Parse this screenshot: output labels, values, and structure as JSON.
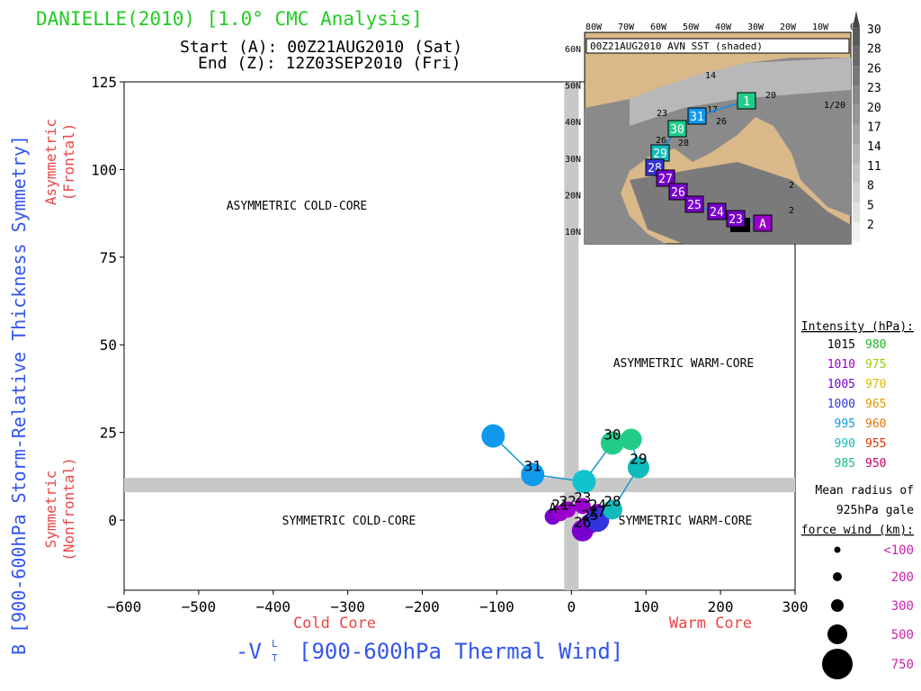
{
  "header": {
    "title": "DANIELLE(2010) [1.0° CMC Analysis]",
    "start": "Start (A): 00Z21AUG2010 (Sat)",
    "end": "End (Z): 12Z03SEP2010 (Fri)"
  },
  "axes": {
    "ylabel": "B [900-600hPa Storm-Relative Thickness Symmetry]",
    "xlabel_main": "-V",
    "xlabel_T": "T",
    "xlabel_L": "L",
    "xlabel_rest": "[900-600hPa Thermal Wind]",
    "y_top_annot": [
      "Asymmetric",
      "(Frontal)"
    ],
    "y_bottom_annot": [
      "Symmetric",
      "(Nonfrontal)"
    ],
    "x_left_annot": "Cold Core",
    "x_right_annot": "Warm Core"
  },
  "quadrants": {
    "asym_cold": "ASYMMETRIC COLD-CORE",
    "asym_warm": "ASYMMETRIC WARM-CORE",
    "sym_cold": "SYMMETRIC COLD-CORE",
    "sym_warm": "SYMMETRIC WARM-CORE"
  },
  "inset": {
    "title": "00Z21AUG2010 AVN SST (shaded)",
    "lon_labels": [
      "80W",
      "70W",
      "60W",
      "50W",
      "40W",
      "30W",
      "20W",
      "10W",
      "0"
    ],
    "lat_labels": [
      "60N",
      "50N",
      "40N",
      "30N",
      "20N",
      "10N"
    ],
    "colorbar": [
      "30",
      "28",
      "26",
      "23",
      "20",
      "17",
      "14",
      "11",
      "8",
      "5",
      "2"
    ],
    "track_labels": [
      "1",
      "31",
      "30",
      "29",
      "28",
      "27",
      "26",
      "25",
      "24",
      "23",
      "A"
    ],
    "sst_labels": [
      "14",
      "17",
      "20",
      "1/20",
      "23",
      "26",
      "26",
      "28",
      "2",
      "2"
    ]
  },
  "legend": {
    "intensity_title": "Intensity (hPa):",
    "intensity": [
      {
        "left": "1015",
        "left_color": "#000000",
        "right": "980",
        "right_color": "#22bb22"
      },
      {
        "left": "1010",
        "left_color": "#9900cc",
        "right": "975",
        "right_color": "#99cc00"
      },
      {
        "left": "1005",
        "left_color": "#7700cc",
        "right": "970",
        "right_color": "#ddbb00"
      },
      {
        "left": "1000",
        "left_color": "#3333dd",
        "right": "965",
        "right_color": "#dd9900"
      },
      {
        "left": "995",
        "left_color": "#1199dd",
        "right": "960",
        "right_color": "#dd7700"
      },
      {
        "left": "990",
        "left_color": "#11bbbb",
        "right": "955",
        "right_color": "#dd3300"
      },
      {
        "left": "985",
        "left_color": "#11bb88",
        "right": "950",
        "right_color": "#cc0066"
      }
    ],
    "radius_title": [
      "Mean radius of",
      "925hPa gale",
      "force wind (km):"
    ],
    "radius": [
      "<100",
      "200",
      "300",
      "500",
      "750"
    ]
  },
  "chart_data": {
    "type": "scatter",
    "title": "DANIELLE(2010) [1.0° CMC Analysis]",
    "xlabel": "-VT L [900-600hPa Thermal Wind]",
    "ylabel": "B [900-600hPa Storm-Relative Thickness Symmetry]",
    "xlim": [
      -600,
      300
    ],
    "ylim": [
      -20,
      125
    ],
    "xticks": [
      -600,
      -500,
      -400,
      -300,
      -200,
      -100,
      0,
      100,
      200,
      300
    ],
    "yticks": [
      0,
      25,
      50,
      75,
      100,
      125
    ],
    "grid": false,
    "track": [
      {
        "label": "A",
        "x": -25,
        "y": 1,
        "color": "#7700cc",
        "size": 9
      },
      {
        "label": "21",
        "x": -15,
        "y": 2,
        "color": "#9900cc",
        "size": 9
      },
      {
        "label": "22",
        "x": -5,
        "y": 3,
        "color": "#9900cc",
        "size": 9
      },
      {
        "label": "23",
        "x": 15,
        "y": 4,
        "color": "#9900cc",
        "size": 9
      },
      {
        "label": "24",
        "x": 35,
        "y": 2,
        "color": "#7700cc",
        "size": 10
      },
      {
        "label": "25",
        "x": 25,
        "y": -1,
        "color": "#7700cc",
        "size": 11
      },
      {
        "label": "26",
        "x": 15,
        "y": -3,
        "color": "#7700cc",
        "size": 12
      },
      {
        "label": "27",
        "x": 35,
        "y": 0,
        "color": "#3333dd",
        "size": 13
      },
      {
        "label": "28",
        "x": 55,
        "y": 3,
        "color": "#11bbbb",
        "size": 11
      },
      {
        "label": "29",
        "x": 90,
        "y": 15,
        "color": "#11bbbb",
        "size": 12
      },
      {
        "label": "",
        "x": 80,
        "y": 23,
        "color": "#22cc88",
        "size": 12
      },
      {
        "label": "30",
        "x": 55,
        "y": 22,
        "color": "#22cc88",
        "size": 13
      },
      {
        "label": "",
        "x": 17,
        "y": 11,
        "color": "#11c4cc",
        "size": 13
      },
      {
        "label": "31",
        "x": -52,
        "y": 13,
        "color": "#1199ee",
        "size": 13
      },
      {
        "label": "",
        "x": -105,
        "y": 24,
        "color": "#1199ee",
        "size": 13
      }
    ]
  }
}
